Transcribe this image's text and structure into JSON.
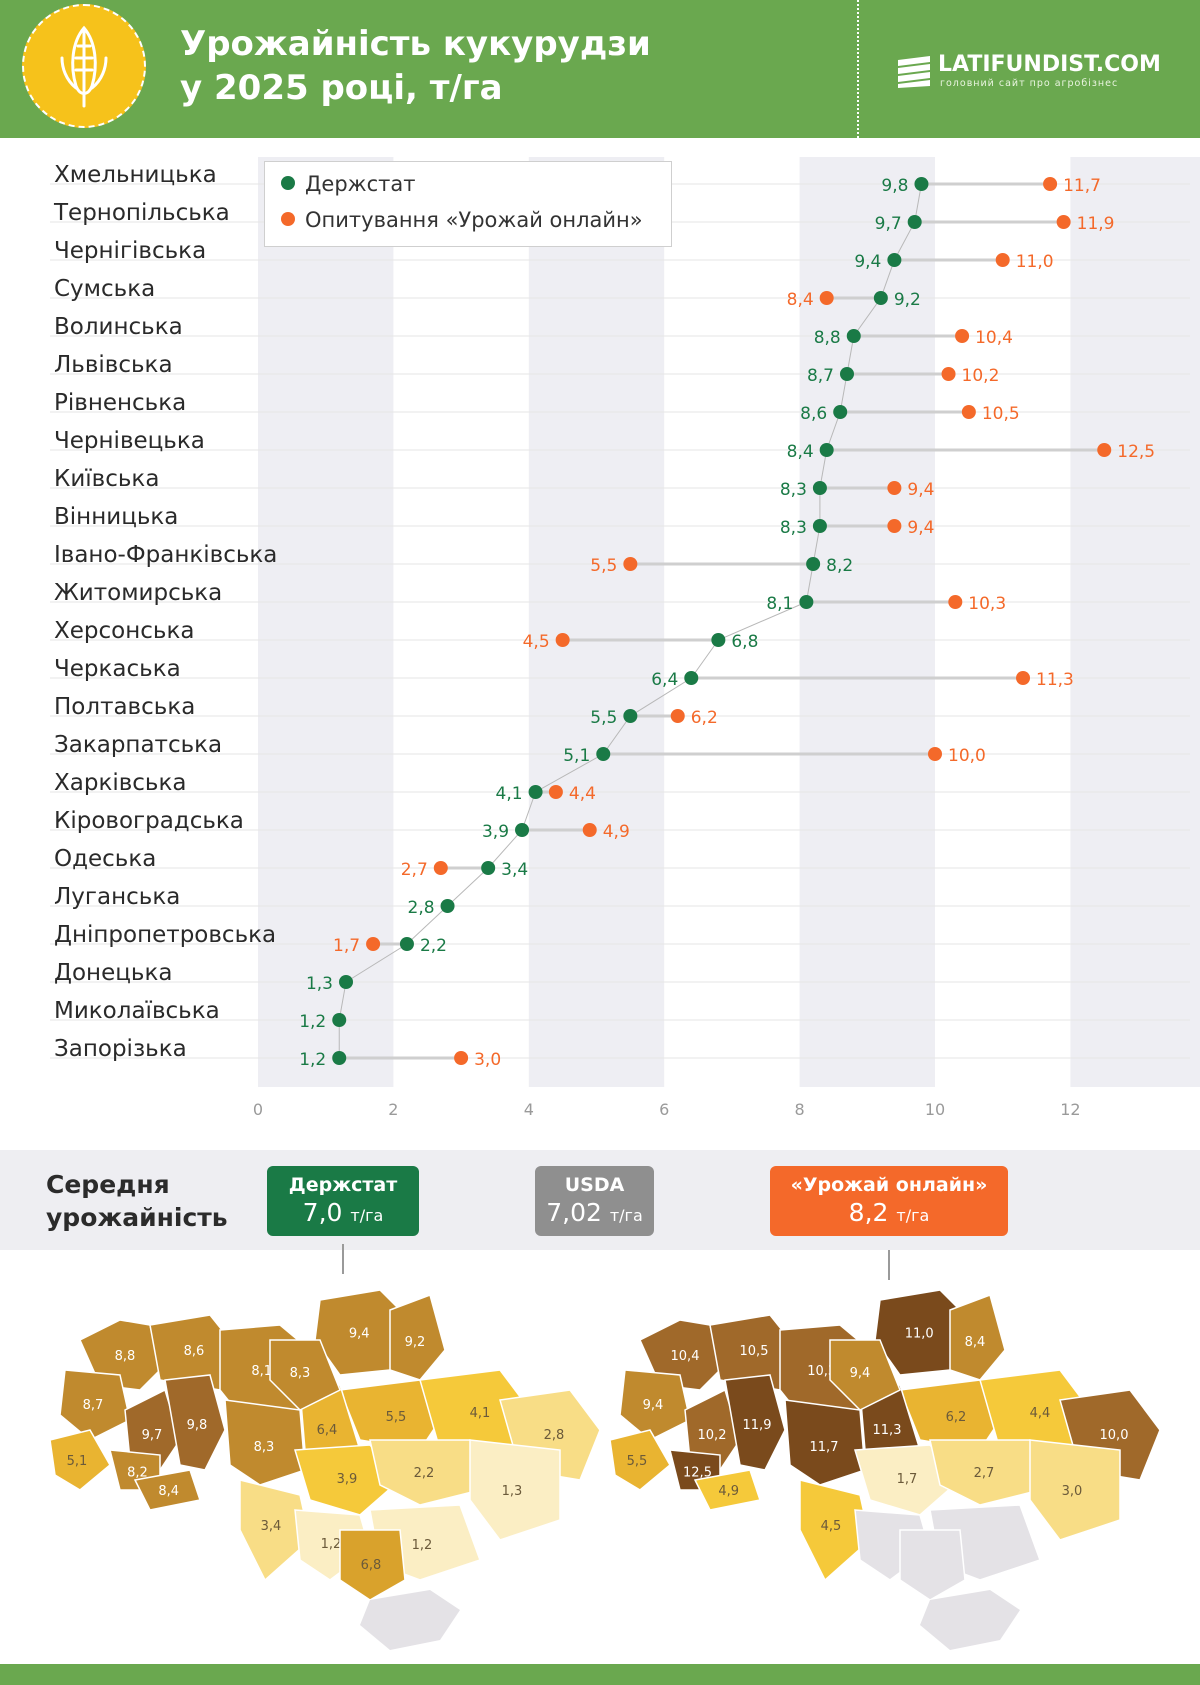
{
  "header": {
    "title_line1": "Урожайність кукурудзи",
    "title_line2": "у 2025 році, т/га",
    "brand": "LATIFUNDIST.COM",
    "brand_sub": "головний сайт про агробізнес",
    "corn_icon": "corn-icon",
    "brand_icon": "field-logo-icon"
  },
  "colors": {
    "header_green": "#6aa84f",
    "derzhstat": "#1a7a46",
    "survey": "#f4692a",
    "usda": "#8f8f8f"
  },
  "legend": {
    "derzhstat": "Держстат",
    "survey": "Опитування «Урожай онлайн»"
  },
  "chart_data": {
    "type": "dot",
    "categories": [
      "Хмельницька",
      "Тернопільська",
      "Чернігівська",
      "Сумська",
      "Волинська",
      "Львівська",
      "Рівненська",
      "Чернівецька",
      "Київська",
      "Вінницька",
      "Івано-Франківська",
      "Житомирська",
      "Херсонська",
      "Черкаська",
      "Полтавська",
      "Закарпатська",
      "Харківська",
      "Кіровоградська",
      "Одеська",
      "Луганська",
      "Дніпропетровська",
      "Донецька",
      "Миколаївська",
      "Запорізька"
    ],
    "series": [
      {
        "name": "Держстат",
        "values": [
          9.8,
          9.7,
          9.4,
          9.2,
          8.8,
          8.7,
          8.6,
          8.4,
          8.3,
          8.3,
          8.2,
          8.1,
          6.8,
          6.4,
          5.5,
          5.1,
          4.1,
          3.9,
          3.4,
          2.8,
          2.2,
          1.3,
          1.2,
          1.2
        ],
        "labels": [
          "9,8",
          "9,7",
          "9,4",
          "9,2",
          "8,8",
          "8,7",
          "8,6",
          "8,4",
          "8,3",
          "8,3",
          "8,2",
          "8,1",
          "6,8",
          "6,4",
          "5,5",
          "5,1",
          "4,1",
          "3,9",
          "3,4",
          "2,8",
          "2,2",
          "1,3",
          "1,2",
          "1,2"
        ]
      },
      {
        "name": "Опитування «Урожай онлайн»",
        "values": [
          11.7,
          11.9,
          11.0,
          8.4,
          10.4,
          10.2,
          10.5,
          12.5,
          9.4,
          9.4,
          5.5,
          10.3,
          4.5,
          11.3,
          6.2,
          10.0,
          4.4,
          4.9,
          2.7,
          null,
          1.7,
          null,
          null,
          3.0
        ],
        "labels": [
          "11,7",
          "11,9",
          "11,0",
          "8,4",
          "10,4",
          "10,2",
          "10,5",
          "12,5",
          "9,4",
          "9,4",
          "5,5",
          "10,3",
          "4,5",
          "11,3",
          "6,2",
          "10,0",
          "4,4",
          "4,9",
          "2,7",
          "",
          "1,7",
          "",
          "",
          "3,0"
        ]
      }
    ],
    "xlim": [
      0,
      14
    ],
    "xticks": [
      0,
      2,
      4,
      6,
      8,
      10,
      12
    ],
    "grid": true,
    "legend_position": "top-left"
  },
  "average": {
    "title_line1": "Середня",
    "title_line2": "урожайність",
    "unit": "т/га",
    "derzhstat": {
      "label": "Держстат",
      "value": "7,0"
    },
    "usda": {
      "label": "USDA",
      "value": "7,02"
    },
    "survey": {
      "label": "«Урожай онлайн»",
      "value": "8,2"
    }
  },
  "maps": {
    "left_labels": [
      "8,8",
      "8,6",
      "9,4",
      "9,2",
      "8,1",
      "8,7",
      "9,7",
      "9,8",
      "8,3",
      "5,5",
      "4,1",
      "6,4",
      "8,3",
      "2,8",
      "5,1",
      "8,2",
      "8,4",
      "3,9",
      "2,2",
      "1,3",
      "3,4",
      "1,2",
      "1,2",
      "6,8"
    ],
    "right_labels": [
      "10,4",
      "10,5",
      "11,0",
      "8,4",
      "10,3",
      "9,4",
      "10,2",
      "11,9",
      "11,7",
      "6,2",
      "4,4",
      "11,3",
      "9,4",
      "10,0",
      "5,5",
      "12,5",
      "4,9",
      "1,7",
      "2,7",
      "3,0",
      "4,5"
    ]
  }
}
